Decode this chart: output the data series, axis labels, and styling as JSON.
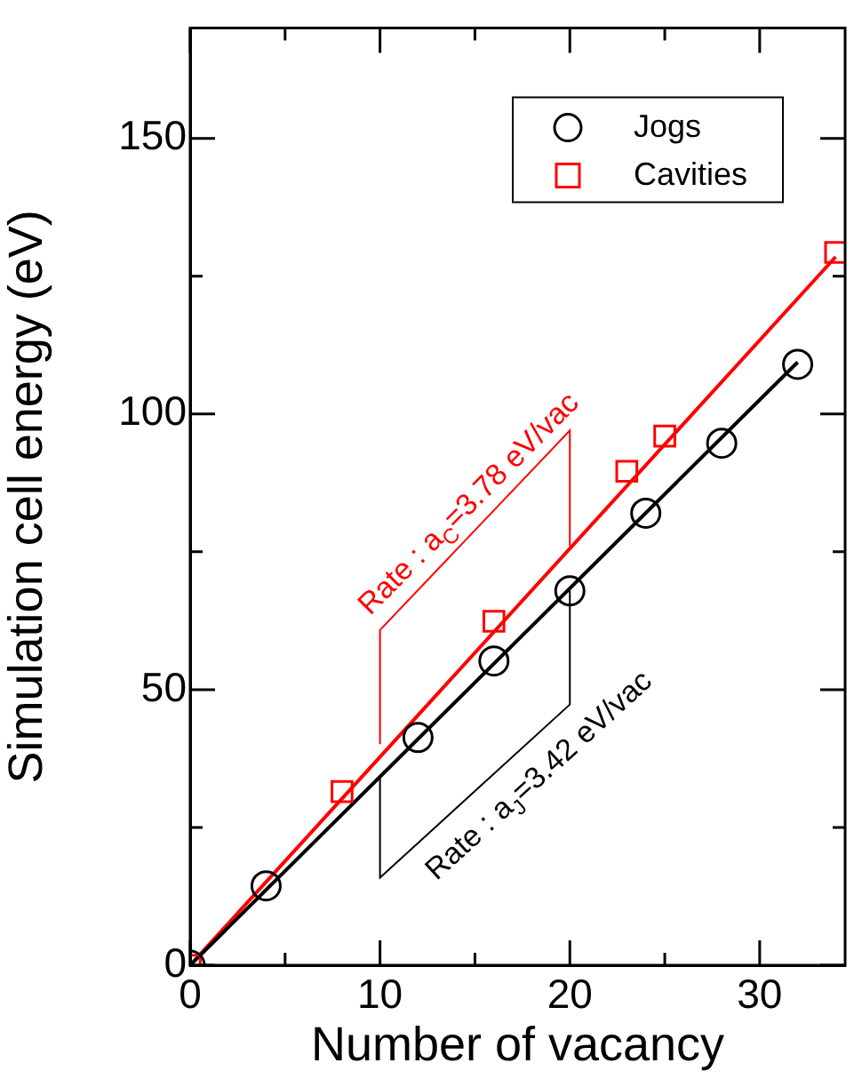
{
  "chart_data": {
    "type": "scatter",
    "xlabel": "Number of vacancy",
    "ylabel": "Simulation cell energy (eV)",
    "xlim": [
      0,
      34.5
    ],
    "xticks": [
      0,
      {
        "value": 5,
        "label": null
      },
      10,
      {
        "value": 15,
        "label": null
      },
      20,
      {
        "value": 25,
        "label": null
      },
      30
    ],
    "ylim": [
      0,
      170
    ],
    "yticks": [
      0,
      {
        "value": 25,
        "label": null
      },
      50,
      {
        "value": 75,
        "label": null
      },
      100,
      {
        "value": 125,
        "label": null
      },
      150
    ],
    "grid": false,
    "legend": "top right",
    "series": [
      {
        "name": "Jogs",
        "color": "#000000",
        "marker": "circle",
        "x": [
          0,
          4,
          12,
          16,
          20,
          24,
          28,
          32
        ],
        "values": [
          0,
          14.4,
          41.3,
          55.2,
          67.9,
          82,
          94.7,
          109
        ]
      },
      {
        "name": "Cavities",
        "color": "#ff0000",
        "marker": "square",
        "x": [
          0,
          8,
          16,
          23,
          25,
          34
        ],
        "values": [
          0,
          31.5,
          62.4,
          89.6,
          96,
          129.3
        ]
      },
      {
        "type": "line",
        "color": "#000000",
        "marker": "none",
        "x": [
          0,
          32
        ],
        "values": [
          0,
          109.4
        ]
      },
      {
        "type": "line",
        "color": "#ff0000",
        "marker": "none",
        "x": [
          0,
          34
        ],
        "values": [
          0,
          128.5
        ]
      }
    ],
    "annotations": [
      "Rate : a$_{C}$=3.78 eV/vac",
      "Rate : a$_{J}$=3.42 eV/vac"
    ]
  }
}
